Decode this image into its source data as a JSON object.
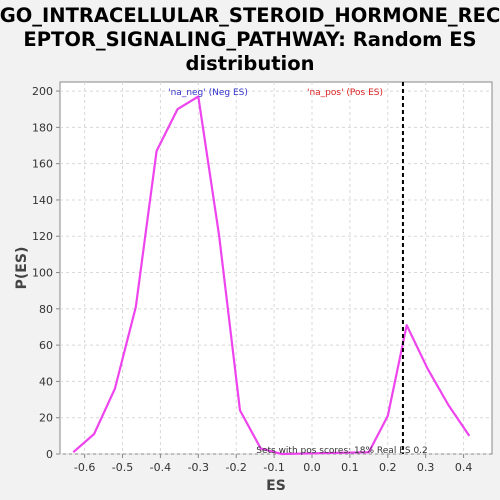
{
  "chart_data": {
    "type": "line",
    "title_lines": [
      "GO_INTRACELLULAR_STEROID_HORMONE_REC",
      "EPTOR_SIGNALING_PATHWAY: Random ES",
      "distribution"
    ],
    "xlabel": "ES",
    "ylabel": "P(ES)",
    "xlim": [
      -0.665,
      0.475
    ],
    "ylim": [
      0,
      205
    ],
    "x_ticks": [
      -0.6,
      -0.5,
      -0.4,
      -0.3,
      -0.2,
      -0.1,
      0.0,
      0.1,
      0.2,
      0.3,
      0.4
    ],
    "x_tick_labels": [
      "-0.6",
      "-0.5",
      "-0.4",
      "-0.3",
      "-0.2",
      "-0.1",
      "0.0",
      "0.1",
      "0.2",
      "0.3",
      "0.4"
    ],
    "y_ticks": [
      0,
      20,
      40,
      60,
      80,
      100,
      120,
      140,
      160,
      180,
      200
    ],
    "y_tick_labels": [
      "0",
      "20",
      "40",
      "60",
      "80",
      "100",
      "120",
      "140",
      "160",
      "180",
      "200"
    ],
    "grid": true,
    "series": [
      {
        "color": "#ee44ee",
        "x": [
          -0.63,
          -0.575,
          -0.52,
          -0.465,
          -0.41,
          -0.355,
          -0.3,
          -0.245,
          -0.19,
          -0.135,
          -0.08,
          0.15,
          0.2,
          0.25,
          0.305,
          0.36,
          0.415
        ],
        "y": [
          1,
          11,
          36,
          81,
          167,
          190,
          197,
          120,
          24,
          3,
          0,
          1,
          21,
          71,
          47,
          27,
          10
        ]
      }
    ],
    "vline": {
      "x": 0.24,
      "style": "dashed",
      "color": "#000000"
    },
    "annotations": {
      "neg_label": "'na_neg' (Neg ES)",
      "neg_color": "#3333cc",
      "pos_label": "'na_pos' (Pos ES)",
      "pos_color": "#dd2222",
      "bottom_text": "Sets with pos scores: 18% Real ES 0.2"
    }
  }
}
